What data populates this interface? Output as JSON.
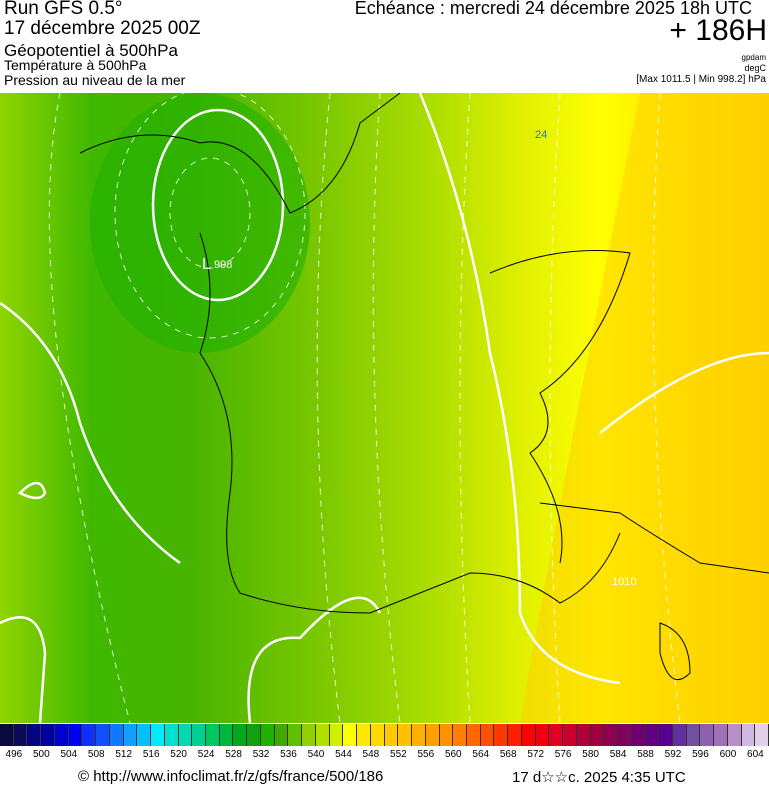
{
  "header": {
    "run": "Run GFS 0.5°",
    "run_date": "17 décembre 2025 00Z",
    "title": "Géopotentiel à 500hPa",
    "line2": "Température à 500hPa",
    "line3": "Pression au niveau de la mer",
    "echeance": "Echéance : mercredi 24 décembre 2025 18h UTC",
    "lead": "+ 186H",
    "unit1": "gpdam",
    "unit2": "degC",
    "minmax": "[Max 1011.5 | Min 998.2] hPa"
  },
  "map": {
    "labels": {
      "low": "L",
      "low_value": "998",
      "iso_1010": "1010",
      "iso_24": "24"
    }
  },
  "colorbar": {
    "ticks": [
      "496",
      "500",
      "504",
      "508",
      "512",
      "516",
      "520",
      "524",
      "528",
      "532",
      "536",
      "540",
      "544",
      "548",
      "552",
      "556",
      "560",
      "564",
      "568",
      "572",
      "576",
      "580",
      "584",
      "588",
      "592",
      "596",
      "600",
      "604"
    ],
    "colors": [
      "#0a0a40",
      "#0b0b5a",
      "#050580",
      "#0000a0",
      "#0000d0",
      "#0000f0",
      "#1030ff",
      "#1050ff",
      "#1078ff",
      "#10a0ff",
      "#00c0ff",
      "#00eaff",
      "#00e0d0",
      "#00d8b0",
      "#00d090",
      "#00c860",
      "#00b840",
      "#00a820",
      "#10a010",
      "#20b000",
      "#40a800",
      "#60c000",
      "#90d000",
      "#b0e000",
      "#d0f000",
      "#ffff00",
      "#ffe800",
      "#ffd800",
      "#ffc800",
      "#ffc000",
      "#ffb000",
      "#ffa000",
      "#ff9000",
      "#ff8000",
      "#ff6800",
      "#ff5000",
      "#ff3800",
      "#ff2000",
      "#ff0000",
      "#f00010",
      "#e00020",
      "#c80030",
      "#b00038",
      "#a00040",
      "#900050",
      "#800060",
      "#700070",
      "#600080",
      "#580090",
      "#6030a0",
      "#7050a0",
      "#9060b0",
      "#a070b8",
      "#b890c8",
      "#d0b8e0",
      "#e0d0e8"
    ]
  },
  "footer": {
    "url": "© http://www.infoclimat.fr/z/gfs/france/500/186",
    "timestamp": "17 d☆☆c. 2025  4:35 UTC"
  }
}
